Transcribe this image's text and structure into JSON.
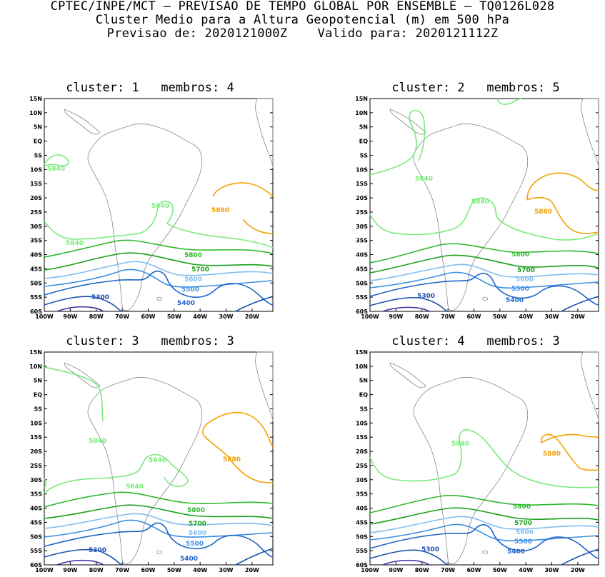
{
  "header": {
    "line1": "CPTEC/INPE/MCT – PREVISAO DE TEMPO GLOBAL POR ENSEMBLE – TQ0126L028",
    "line2": "Cluster Medio para a Altura Geopotencial (m) em 500 hPa",
    "line3": "Previsao de: 2020121000Z    Valido para: 2020121112Z"
  },
  "axes": {
    "lat_labels": [
      "15N",
      "10N",
      "5N",
      "EQ",
      "5S",
      "10S",
      "15S",
      "20S",
      "25S",
      "30S",
      "35S",
      "40S",
      "45S",
      "50S",
      "55S",
      "60S"
    ],
    "lon_labels": [
      "100W",
      "90W",
      "80W",
      "70W",
      "60W",
      "50W",
      "40W",
      "30W",
      "20W"
    ]
  },
  "colors": {
    "c5840": "#7aea7a",
    "c5880": "#f5a000",
    "c5800": "#2eb82e",
    "c5700": "#1aa01a",
    "c5600": "#80bdf0",
    "c5500": "#3c8fe0",
    "c5400": "#1e64c8",
    "c5300": "#1c4fb0",
    "c5200": "#3a2fa8",
    "coast": "#888888"
  },
  "panels": [
    {
      "title": "cluster: 1   membros: 4",
      "labels": {
        "a": "5840",
        "b": "5840",
        "c": "5840",
        "d": "5880",
        "e": "5800",
        "f": "5700",
        "g": "5600",
        "h": "5500",
        "i": "5400",
        "j": "5300"
      }
    },
    {
      "title": "cluster: 2   membros: 5",
      "labels": {
        "a": "5840",
        "b": "5840",
        "c": "5880",
        "d": "5800",
        "e": "5700",
        "f": "5600",
        "g": "5500",
        "h": "5400",
        "i": "5300"
      }
    },
    {
      "title": "cluster: 3   membros: 3",
      "labels": {
        "a": "5840",
        "b": "5840",
        "c": "5840",
        "d": "5880",
        "e": "5800",
        "f": "5700",
        "g": "5600",
        "h": "5500",
        "i": "5400",
        "j": "5300"
      }
    },
    {
      "title": "cluster: 4   membros: 3",
      "labels": {
        "a": "5840",
        "b": "5880",
        "c": "5800",
        "d": "5700",
        "e": "5600",
        "f": "5500",
        "g": "5400",
        "h": "5300"
      }
    }
  ]
}
